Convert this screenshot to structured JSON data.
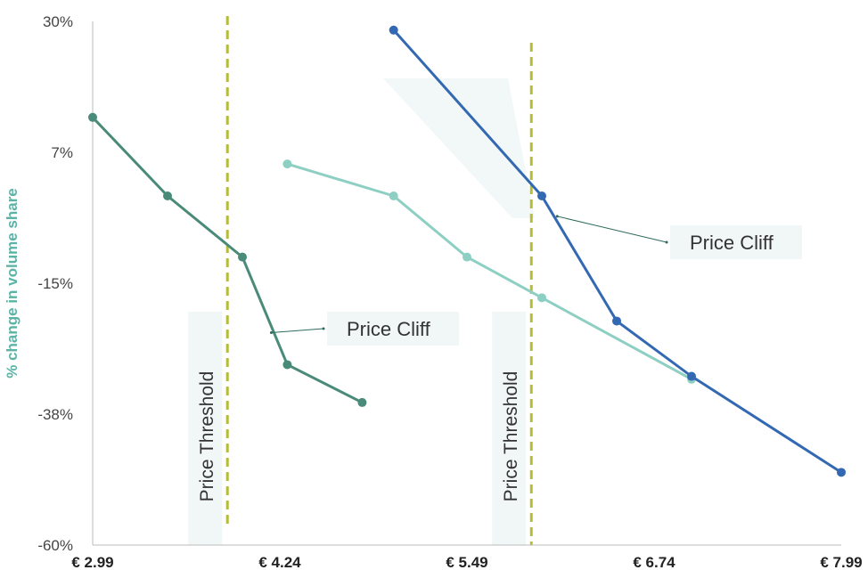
{
  "chart_data": {
    "type": "line",
    "title": "",
    "xlabel": "",
    "ylabel": "% change in volume share",
    "x_ticks": [
      "€ 2.99",
      "€ 4.24",
      "€ 5.49",
      "€ 6.74",
      "€ 7.99"
    ],
    "y_ticks": [
      "30%",
      "7%",
      "-15%",
      "-38%",
      "-60%"
    ],
    "xlim": [
      2.99,
      7.99
    ],
    "ylim": [
      -60,
      30
    ],
    "grid": false,
    "legend": "none",
    "series": [
      {
        "color": "#4a8a78",
        "x": [
          2.99,
          3.49,
          3.99,
          4.29,
          4.79
        ],
        "y": [
          13.5,
          0,
          -10.5,
          -29,
          -35.5
        ]
      },
      {
        "color": "#8ecfc4",
        "x": [
          4.29,
          5.0,
          5.49,
          5.99,
          6.99
        ],
        "y": [
          5.5,
          0,
          -10.5,
          -17.5,
          -31.5
        ]
      },
      {
        "color": "#3369b2",
        "x": [
          5.0,
          5.99,
          6.49,
          6.99,
          7.99
        ],
        "y": [
          28.5,
          0,
          -21.5,
          -31,
          -47.5
        ]
      }
    ],
    "thresholds": [
      {
        "x": 3.89,
        "label": "Price Threshold",
        "color": "#b5bc3a"
      },
      {
        "x": 5.92,
        "label": "Price Threshold",
        "color": "#b5bc3a"
      }
    ],
    "annotations": [
      {
        "text": "Price Cliff",
        "x": 4.29,
        "y": -23.5
      },
      {
        "text": "Price Cliff",
        "x": 6.2,
        "y": -3.5
      }
    ]
  }
}
